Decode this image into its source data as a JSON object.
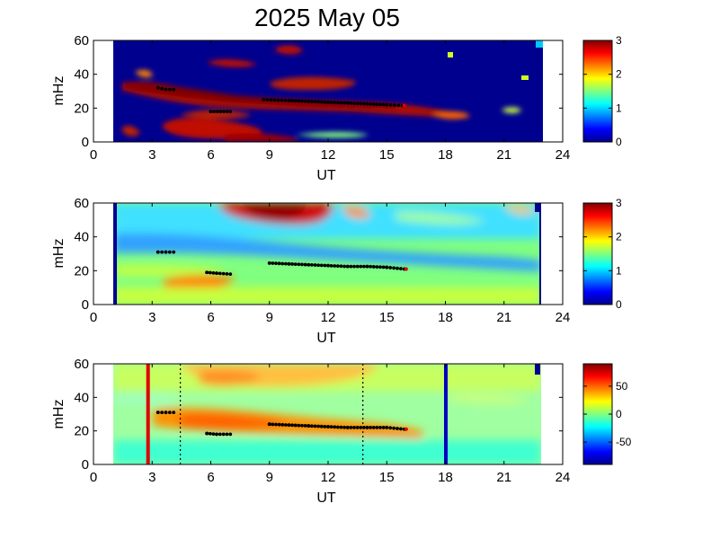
{
  "title": "2025 May 05",
  "chart_data": [
    {
      "type": "heatmap",
      "panel": "top",
      "xlabel": "UT",
      "ylabel": "mHz",
      "xlim": [
        0,
        24
      ],
      "ylim": [
        0,
        60
      ],
      "xticks": [
        0,
        3,
        6,
        9,
        12,
        15,
        18,
        21,
        24
      ],
      "yticks": [
        0,
        20,
        40,
        60
      ],
      "data_range_ut": [
        1.0,
        23.0
      ],
      "colorbar": {
        "range": [
          0,
          3
        ],
        "ticks": [
          0,
          1,
          2,
          3
        ]
      },
      "ridge_points": [
        [
          3.3,
          32
        ],
        [
          3.7,
          31
        ],
        [
          4.1,
          31
        ],
        [
          8.7,
          25
        ],
        [
          10,
          24.5
        ],
        [
          11,
          24
        ],
        [
          12,
          23.5
        ],
        [
          13,
          23
        ],
        [
          14,
          22.5
        ],
        [
          15,
          22
        ],
        [
          15.8,
          21.5
        ],
        [
          6,
          18
        ],
        [
          6.5,
          18
        ],
        [
          7,
          18
        ]
      ]
    },
    {
      "type": "heatmap",
      "panel": "middle",
      "xlabel": "UT",
      "ylabel": "mHz",
      "xlim": [
        0,
        24
      ],
      "ylim": [
        0,
        60
      ],
      "xticks": [
        0,
        3,
        6,
        9,
        12,
        15,
        18,
        21,
        24
      ],
      "yticks": [
        0,
        20,
        40,
        60
      ],
      "data_range_ut": [
        1.0,
        23.0
      ],
      "colorbar": {
        "range": [
          0,
          3
        ],
        "ticks": [
          0,
          1,
          2,
          3
        ]
      },
      "ridge_points": [
        [
          3.3,
          31
        ],
        [
          3.7,
          31
        ],
        [
          4.1,
          31
        ],
        [
          5.8,
          19
        ],
        [
          6.3,
          18.5
        ],
        [
          7,
          18
        ],
        [
          9,
          24.5
        ],
        [
          10,
          24
        ],
        [
          11,
          23.5
        ],
        [
          12,
          23
        ],
        [
          13,
          22.5
        ],
        [
          14,
          22.5
        ],
        [
          15,
          22
        ],
        [
          15.9,
          21
        ]
      ]
    },
    {
      "type": "heatmap",
      "panel": "bottom",
      "xlabel": "UT",
      "ylabel": "mHz",
      "xlim": [
        0,
        24
      ],
      "ylim": [
        0,
        60
      ],
      "xticks": [
        0,
        3,
        6,
        9,
        12,
        15,
        18,
        21,
        24
      ],
      "yticks": [
        0,
        20,
        40,
        60
      ],
      "data_range_ut": [
        1.0,
        23.0
      ],
      "colorbar": {
        "range": [
          -90,
          90
        ],
        "ticks": [
          50,
          0,
          -50
        ]
      },
      "markers": {
        "red_line_ut": 2.85,
        "blue_line_ut": 18.0,
        "dotted_lines_ut": [
          4.4,
          13.8
        ]
      },
      "ridge_points": [
        [
          3.3,
          31
        ],
        [
          3.7,
          31
        ],
        [
          4.1,
          31
        ],
        [
          5.8,
          18.5
        ],
        [
          6.3,
          18
        ],
        [
          7,
          18
        ],
        [
          9,
          24
        ],
        [
          10,
          23.5
        ],
        [
          11,
          23
        ],
        [
          12,
          22.5
        ],
        [
          13,
          22
        ],
        [
          14,
          22
        ],
        [
          15,
          22
        ],
        [
          15.9,
          21
        ]
      ]
    }
  ],
  "colors": {
    "low": "#00008f",
    "mid": "#80ff80",
    "high": "#800000"
  }
}
